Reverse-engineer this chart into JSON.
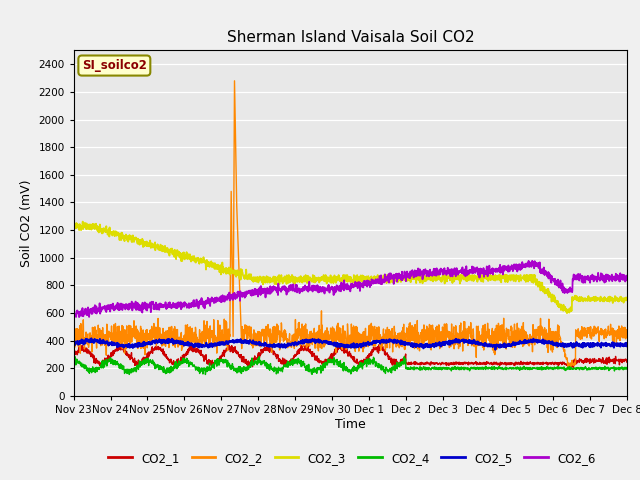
{
  "title": "Sherman Island Vaisala Soil CO2",
  "ylabel": "Soil CO2 (mV)",
  "xlabel": "Time",
  "watermark": "SI_soilco2",
  "fig_bg_color": "#f0f0f0",
  "plot_bg_color": "#e8e8e8",
  "ylim": [
    0,
    2500
  ],
  "yticks": [
    0,
    200,
    400,
    600,
    800,
    1000,
    1200,
    1400,
    1600,
    1800,
    2000,
    2200,
    2400
  ],
  "series": {
    "CO2_1": {
      "color": "#cc0000",
      "lw": 1.0
    },
    "CO2_2": {
      "color": "#ff8800",
      "lw": 1.0
    },
    "CO2_3": {
      "color": "#dddd00",
      "lw": 1.3
    },
    "CO2_4": {
      "color": "#00bb00",
      "lw": 1.0
    },
    "CO2_5": {
      "color": "#0000cc",
      "lw": 1.5
    },
    "CO2_6": {
      "color": "#aa00cc",
      "lw": 1.3
    }
  },
  "xtick_labels": [
    "Nov 23",
    "Nov 24",
    "Nov 25",
    "Nov 26",
    "Nov 27",
    "Nov 28",
    "Nov 29",
    "Nov 30",
    "Dec 1",
    "Dec 2",
    "Dec 3",
    "Dec 4",
    "Dec 5",
    "Dec 6",
    "Dec 7",
    "Dec 8"
  ],
  "n_points": 2000,
  "date_range_days": 15
}
